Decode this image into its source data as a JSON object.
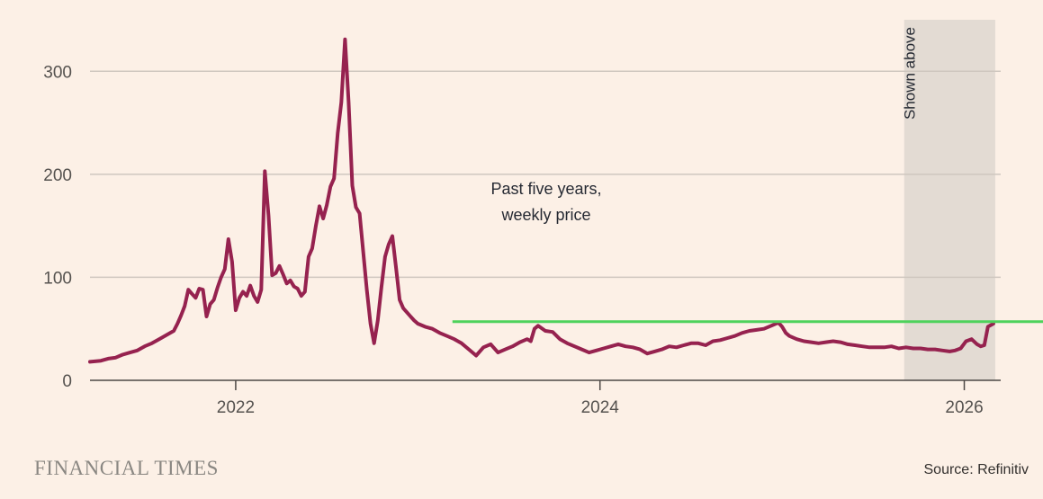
{
  "chart_data": {
    "type": "line",
    "title": "",
    "xlabel": "",
    "ylabel": "",
    "xlim": [
      2021.2,
      2026.2
    ],
    "ylim": [
      0,
      350
    ],
    "x_ticks": [
      {
        "value": 2022,
        "label": "2022"
      },
      {
        "value": 2024,
        "label": "2024"
      },
      {
        "value": 2026,
        "label": "2026"
      }
    ],
    "y_ticks": [
      {
        "value": 0,
        "label": "0"
      },
      {
        "value": 100,
        "label": "100"
      },
      {
        "value": 200,
        "label": "200"
      },
      {
        "value": 300,
        "label": "300"
      }
    ],
    "grid": true,
    "annotation": [
      "Past five years,",
      "weekly price"
    ],
    "shaded_region": {
      "x0": 2025.67,
      "x1": 2026.17,
      "label": "Shown above"
    },
    "reference_line": {
      "x_start": 2023.19,
      "value": 57,
      "color": "#4ed25c"
    },
    "series": [
      {
        "name": "Weekly price",
        "color": "#96224f",
        "points": [
          [
            2021.2,
            18
          ],
          [
            2021.26,
            19
          ],
          [
            2021.3,
            21
          ],
          [
            2021.34,
            22
          ],
          [
            2021.38,
            25
          ],
          [
            2021.42,
            27
          ],
          [
            2021.46,
            29
          ],
          [
            2021.5,
            33
          ],
          [
            2021.54,
            36
          ],
          [
            2021.58,
            40
          ],
          [
            2021.62,
            44
          ],
          [
            2021.66,
            48
          ],
          [
            2021.68,
            55
          ],
          [
            2021.7,
            63
          ],
          [
            2021.72,
            72
          ],
          [
            2021.74,
            88
          ],
          [
            2021.76,
            84
          ],
          [
            2021.78,
            80
          ],
          [
            2021.8,
            89
          ],
          [
            2021.82,
            88
          ],
          [
            2021.84,
            62
          ],
          [
            2021.86,
            74
          ],
          [
            2021.88,
            78
          ],
          [
            2021.9,
            90
          ],
          [
            2021.92,
            100
          ],
          [
            2021.94,
            108
          ],
          [
            2021.96,
            137
          ],
          [
            2021.98,
            115
          ],
          [
            2022.0,
            68
          ],
          [
            2022.02,
            80
          ],
          [
            2022.04,
            86
          ],
          [
            2022.06,
            82
          ],
          [
            2022.08,
            92
          ],
          [
            2022.1,
            82
          ],
          [
            2022.12,
            76
          ],
          [
            2022.14,
            88
          ],
          [
            2022.16,
            203
          ],
          [
            2022.18,
            160
          ],
          [
            2022.2,
            102
          ],
          [
            2022.22,
            104
          ],
          [
            2022.24,
            111
          ],
          [
            2022.26,
            103
          ],
          [
            2022.28,
            94
          ],
          [
            2022.3,
            97
          ],
          [
            2022.32,
            91
          ],
          [
            2022.34,
            89
          ],
          [
            2022.36,
            82
          ],
          [
            2022.38,
            86
          ],
          [
            2022.4,
            120
          ],
          [
            2022.42,
            128
          ],
          [
            2022.44,
            150
          ],
          [
            2022.46,
            169
          ],
          [
            2022.48,
            157
          ],
          [
            2022.5,
            170
          ],
          [
            2022.52,
            188
          ],
          [
            2022.54,
            196
          ],
          [
            2022.56,
            240
          ],
          [
            2022.58,
            270
          ],
          [
            2022.6,
            331
          ],
          [
            2022.62,
            270
          ],
          [
            2022.64,
            189
          ],
          [
            2022.66,
            168
          ],
          [
            2022.68,
            162
          ],
          [
            2022.7,
            125
          ],
          [
            2022.72,
            88
          ],
          [
            2022.74,
            55
          ],
          [
            2022.76,
            36
          ],
          [
            2022.78,
            58
          ],
          [
            2022.8,
            90
          ],
          [
            2022.82,
            120
          ],
          [
            2022.84,
            132
          ],
          [
            2022.86,
            140
          ],
          [
            2022.88,
            110
          ],
          [
            2022.9,
            78
          ],
          [
            2022.92,
            70
          ],
          [
            2022.94,
            66
          ],
          [
            2022.96,
            62
          ],
          [
            2022.98,
            58
          ],
          [
            2023.0,
            55
          ],
          [
            2023.04,
            52
          ],
          [
            2023.08,
            50
          ],
          [
            2023.12,
            46
          ],
          [
            2023.16,
            43
          ],
          [
            2023.2,
            40
          ],
          [
            2023.24,
            36
          ],
          [
            2023.28,
            30
          ],
          [
            2023.32,
            24
          ],
          [
            2023.36,
            32
          ],
          [
            2023.4,
            35
          ],
          [
            2023.44,
            27
          ],
          [
            2023.48,
            30
          ],
          [
            2023.52,
            33
          ],
          [
            2023.56,
            37
          ],
          [
            2023.6,
            40
          ],
          [
            2023.62,
            38
          ],
          [
            2023.64,
            50
          ],
          [
            2023.66,
            53
          ],
          [
            2023.7,
            48
          ],
          [
            2023.74,
            47
          ],
          [
            2023.78,
            40
          ],
          [
            2023.82,
            36
          ],
          [
            2023.86,
            33
          ],
          [
            2023.9,
            30
          ],
          [
            2023.94,
            27
          ],
          [
            2023.98,
            29
          ],
          [
            2024.02,
            31
          ],
          [
            2024.06,
            33
          ],
          [
            2024.1,
            35
          ],
          [
            2024.14,
            33
          ],
          [
            2024.18,
            32
          ],
          [
            2024.22,
            30
          ],
          [
            2024.26,
            26
          ],
          [
            2024.3,
            28
          ],
          [
            2024.34,
            30
          ],
          [
            2024.38,
            33
          ],
          [
            2024.42,
            32
          ],
          [
            2024.46,
            34
          ],
          [
            2024.5,
            36
          ],
          [
            2024.54,
            36
          ],
          [
            2024.58,
            34
          ],
          [
            2024.62,
            38
          ],
          [
            2024.66,
            39
          ],
          [
            2024.7,
            41
          ],
          [
            2024.74,
            43
          ],
          [
            2024.78,
            46
          ],
          [
            2024.82,
            48
          ],
          [
            2024.86,
            49
          ],
          [
            2024.9,
            50
          ],
          [
            2024.94,
            53
          ],
          [
            2024.98,
            56
          ],
          [
            2025.0,
            52
          ],
          [
            2025.02,
            46
          ],
          [
            2025.04,
            43
          ],
          [
            2025.08,
            40
          ],
          [
            2025.12,
            38
          ],
          [
            2025.16,
            37
          ],
          [
            2025.2,
            36
          ],
          [
            2025.24,
            37
          ],
          [
            2025.28,
            38
          ],
          [
            2025.32,
            37
          ],
          [
            2025.36,
            35
          ],
          [
            2025.4,
            34
          ],
          [
            2025.44,
            33
          ],
          [
            2025.48,
            32
          ],
          [
            2025.52,
            32
          ],
          [
            2025.56,
            32
          ],
          [
            2025.6,
            33
          ],
          [
            2025.64,
            31
          ],
          [
            2025.68,
            32
          ],
          [
            2025.72,
            31
          ],
          [
            2025.76,
            31
          ],
          [
            2025.8,
            30
          ],
          [
            2025.84,
            30
          ],
          [
            2025.88,
            29
          ],
          [
            2025.92,
            28
          ],
          [
            2025.95,
            29
          ],
          [
            2025.98,
            31
          ],
          [
            2026.01,
            38
          ],
          [
            2026.04,
            40
          ],
          [
            2026.07,
            35
          ],
          [
            2026.09,
            33
          ],
          [
            2026.11,
            34
          ],
          [
            2026.13,
            52
          ],
          [
            2026.16,
            55
          ]
        ]
      }
    ]
  },
  "footer": {
    "brand": "FINANCIAL TIMES",
    "source": "Source: Refinitiv"
  }
}
